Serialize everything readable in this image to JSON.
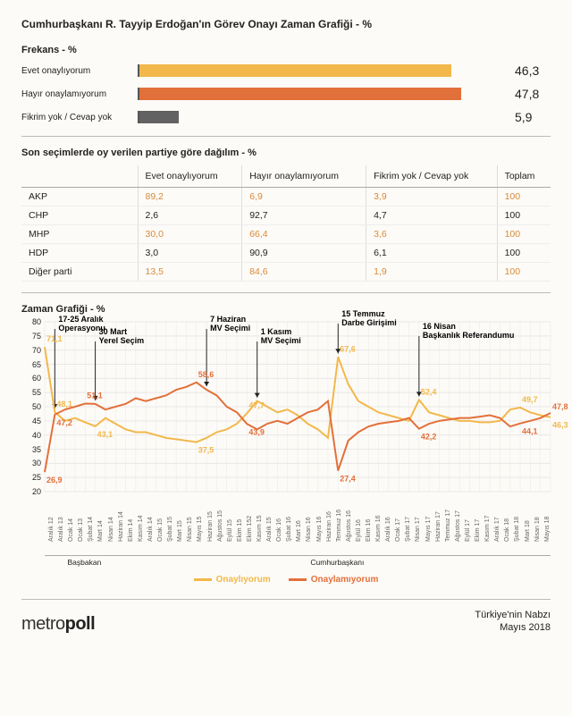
{
  "title": "Cumhurbaşkanı R. Tayyip Erdoğan'ın Görev Onayı Zaman Grafiği - %",
  "freq": {
    "title": "Frekans - %",
    "max": 55,
    "rows": [
      {
        "label": "Evet onaylıyorum",
        "value": "46,3",
        "num": 46.3,
        "color": "#f2b84b"
      },
      {
        "label": "Hayır onaylamıyorum",
        "value": "47,8",
        "num": 47.8,
        "color": "#e2703a"
      },
      {
        "label": "Fikrim yok / Cevap yok",
        "value": "5,9",
        "num": 5.9,
        "color": "#626262"
      }
    ]
  },
  "table": {
    "title": "Son seçimlerde oy verilen partiye göre dağılım - %",
    "headers": [
      "",
      "Evet onaylıyorum",
      "Hayır onaylamıyorum",
      "Fikrim yok / Cevap yok",
      "Toplam"
    ],
    "rows": [
      {
        "name": "AKP",
        "cells": [
          "89,2",
          "6,9",
          "3,9",
          "100"
        ],
        "color": "#d88a3a"
      },
      {
        "name": "CHP",
        "cells": [
          "2,6",
          "92,7",
          "4,7",
          "100"
        ],
        "color": "#222"
      },
      {
        "name": "MHP",
        "cells": [
          "30,0",
          "66,4",
          "3,6",
          "100"
        ],
        "color": "#d88a3a"
      },
      {
        "name": "HDP",
        "cells": [
          "3,0",
          "90,9",
          "6,1",
          "100"
        ],
        "color": "#222"
      },
      {
        "name": "Diğer parti",
        "cells": [
          "13,5",
          "84,6",
          "1,9",
          "100"
        ],
        "color": "#d88a3a"
      }
    ]
  },
  "timechart": {
    "title": "Zaman Grafiği - %",
    "height": 190,
    "ylim": [
      20,
      80
    ],
    "ytick_step": 5,
    "grid_color": "#e8e8e8",
    "x_labels": [
      "Aralık 12",
      "Aralık 13",
      "Ocak 14",
      "Ocak 13",
      "Şubat 14",
      "Mart 14",
      "Nisan 14",
      "Haziran 14",
      "Ekim 14",
      "Kasım 14",
      "Aralık 14",
      "Ocak 15",
      "Şubat 15",
      "Mart 15",
      "Nisan 15",
      "Mayıs 15",
      "Haziran 15",
      "Ağustos 15",
      "Eylül 15",
      "Ekim 15",
      "Ekim 152",
      "Kasım 15",
      "Aralık 15",
      "Ocak 16",
      "Şubat 16",
      "Mart 16",
      "Nisan 16",
      "Mayıs 16",
      "Haziran 16",
      "Temmuz 16",
      "Ağustos 16",
      "Eylül 16",
      "Ekim 16",
      "Kasım 16",
      "Aralık 16",
      "Ocak 17",
      "Şubat 17",
      "Nisan 17",
      "Mayıs 17",
      "Haziran 17",
      "Temmuz 17",
      "Ağustos 17",
      "Eylül 17",
      "Ekim 17",
      "Kasım 17",
      "Aralık 17",
      "Ocak 18",
      "Şubat 18",
      "Mart 18",
      "Nisan 18",
      "Mayıs 18"
    ],
    "periods": [
      {
        "label": "Başbakan",
        "span": 8
      },
      {
        "label": "Cumhurbaşkanı",
        "span": 43
      }
    ],
    "series": [
      {
        "name": "Onaylıyorum",
        "color": "#f2b84b",
        "values": [
          71.1,
          48.1,
          45,
          46,
          44.5,
          43.1,
          46,
          44,
          42,
          41,
          41,
          40,
          39,
          38.5,
          38,
          37.5,
          39,
          41,
          42,
          44,
          47.7,
          52,
          50,
          48,
          49,
          47,
          44,
          42,
          39,
          67.6,
          58,
          52,
          50,
          48,
          47,
          46,
          45,
          52.4,
          48,
          47,
          46,
          45,
          45,
          44.5,
          44.5,
          45,
          49,
          49.7,
          48,
          47,
          46.3
        ]
      },
      {
        "name": "Onaylamıyorum",
        "color": "#e2703a",
        "values": [
          26.9,
          47.2,
          49,
          50,
          51.1,
          51,
          49,
          50,
          51,
          53,
          52,
          53,
          54,
          56,
          57,
          58.6,
          56,
          54,
          50,
          48,
          43.9,
          42,
          44,
          45,
          44,
          46,
          48,
          49,
          52,
          27.4,
          38,
          41,
          43,
          44,
          44.5,
          45,
          46,
          42.2,
          44,
          45,
          45.5,
          46,
          46,
          46.5,
          47,
          46,
          43,
          44.1,
          45,
          46,
          47.8
        ]
      }
    ],
    "callouts": [
      {
        "i": 0,
        "s": 0,
        "text": "71,1",
        "dy": -6
      },
      {
        "i": 0,
        "s": 1,
        "text": "26,9",
        "dy": 12
      },
      {
        "i": 1,
        "s": 0,
        "text": "48,1",
        "dy": -6
      },
      {
        "i": 1,
        "s": 1,
        "text": "47,2",
        "dy": 12
      },
      {
        "i": 4,
        "s": 1,
        "text": "51,1",
        "dy": -6
      },
      {
        "i": 5,
        "s": 0,
        "text": "43,1",
        "dy": 12
      },
      {
        "i": 15,
        "s": 1,
        "text": "58,6",
        "dy": -6
      },
      {
        "i": 15,
        "s": 0,
        "text": "37,5",
        "dy": 12
      },
      {
        "i": 20,
        "s": 0,
        "text": "47,7",
        "dy": -6
      },
      {
        "i": 20,
        "s": 1,
        "text": "43,9",
        "dy": 12
      },
      {
        "i": 29,
        "s": 0,
        "text": "67,6",
        "dy": -6
      },
      {
        "i": 29,
        "s": 1,
        "text": "27,4",
        "dy": 12
      },
      {
        "i": 37,
        "s": 0,
        "text": "52,4",
        "dy": -6
      },
      {
        "i": 37,
        "s": 1,
        "text": "42,2",
        "dy": 12
      },
      {
        "i": 47,
        "s": 0,
        "text": "49,7",
        "dy": -6
      },
      {
        "i": 47,
        "s": 1,
        "text": "44,1",
        "dy": 12
      },
      {
        "i": 50,
        "s": 1,
        "text": "47,8",
        "dy": -4
      },
      {
        "i": 50,
        "s": 0,
        "text": "46,3",
        "dy": 12
      }
    ],
    "annotations": [
      {
        "label": "17-25 Aralık Operasyonu",
        "x": 1,
        "topY": 8
      },
      {
        "label": "30 Mart Yerel Seçim",
        "x": 5,
        "topY": 22
      },
      {
        "label": "7 Haziran MV Seçimi",
        "x": 16,
        "topY": 8
      },
      {
        "label": "1 Kasım MV Seçimi",
        "x": 21,
        "topY": 22
      },
      {
        "label": "15 Temmuz Darbe Girişimi",
        "x": 29,
        "topY": 2
      },
      {
        "label": "16 Nisan Başkanlık Referandumu",
        "x": 37,
        "topY": 16
      }
    ]
  },
  "legend": {
    "items": [
      {
        "label": "Onaylıyorum",
        "color": "#f2b84b"
      },
      {
        "label": "Onaylamıyorum",
        "color": "#e2703a"
      }
    ]
  },
  "footer": {
    "logo_thin": "metro",
    "logo_bold": "poll",
    "right1": "Türkiye'nin Nabzı",
    "right2": "Mayıs 2018"
  }
}
